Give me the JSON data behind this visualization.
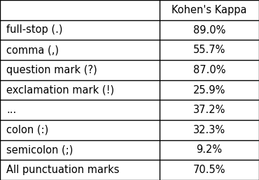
{
  "col_header": "Kohen's Kappa",
  "rows": [
    [
      "full-stop (.)",
      "89.0%"
    ],
    [
      "comma (,)",
      "55.7%"
    ],
    [
      "question mark (?)",
      "87.0%"
    ],
    [
      "exclamation mark (!)",
      "25.9%"
    ],
    [
      "...",
      "37.2%"
    ],
    [
      "colon (:)",
      "32.3%"
    ],
    [
      "semicolon (;)",
      "9.2%"
    ],
    [
      "All punctuation marks",
      "70.5%"
    ]
  ],
  "col_split": 0.615,
  "bg_color": "#ffffff",
  "line_color": "#000000",
  "text_color": "#000000",
  "header_fontsize": 10.5,
  "cell_fontsize": 10.5,
  "fig_width": 3.7,
  "fig_height": 2.58,
  "dpi": 100
}
